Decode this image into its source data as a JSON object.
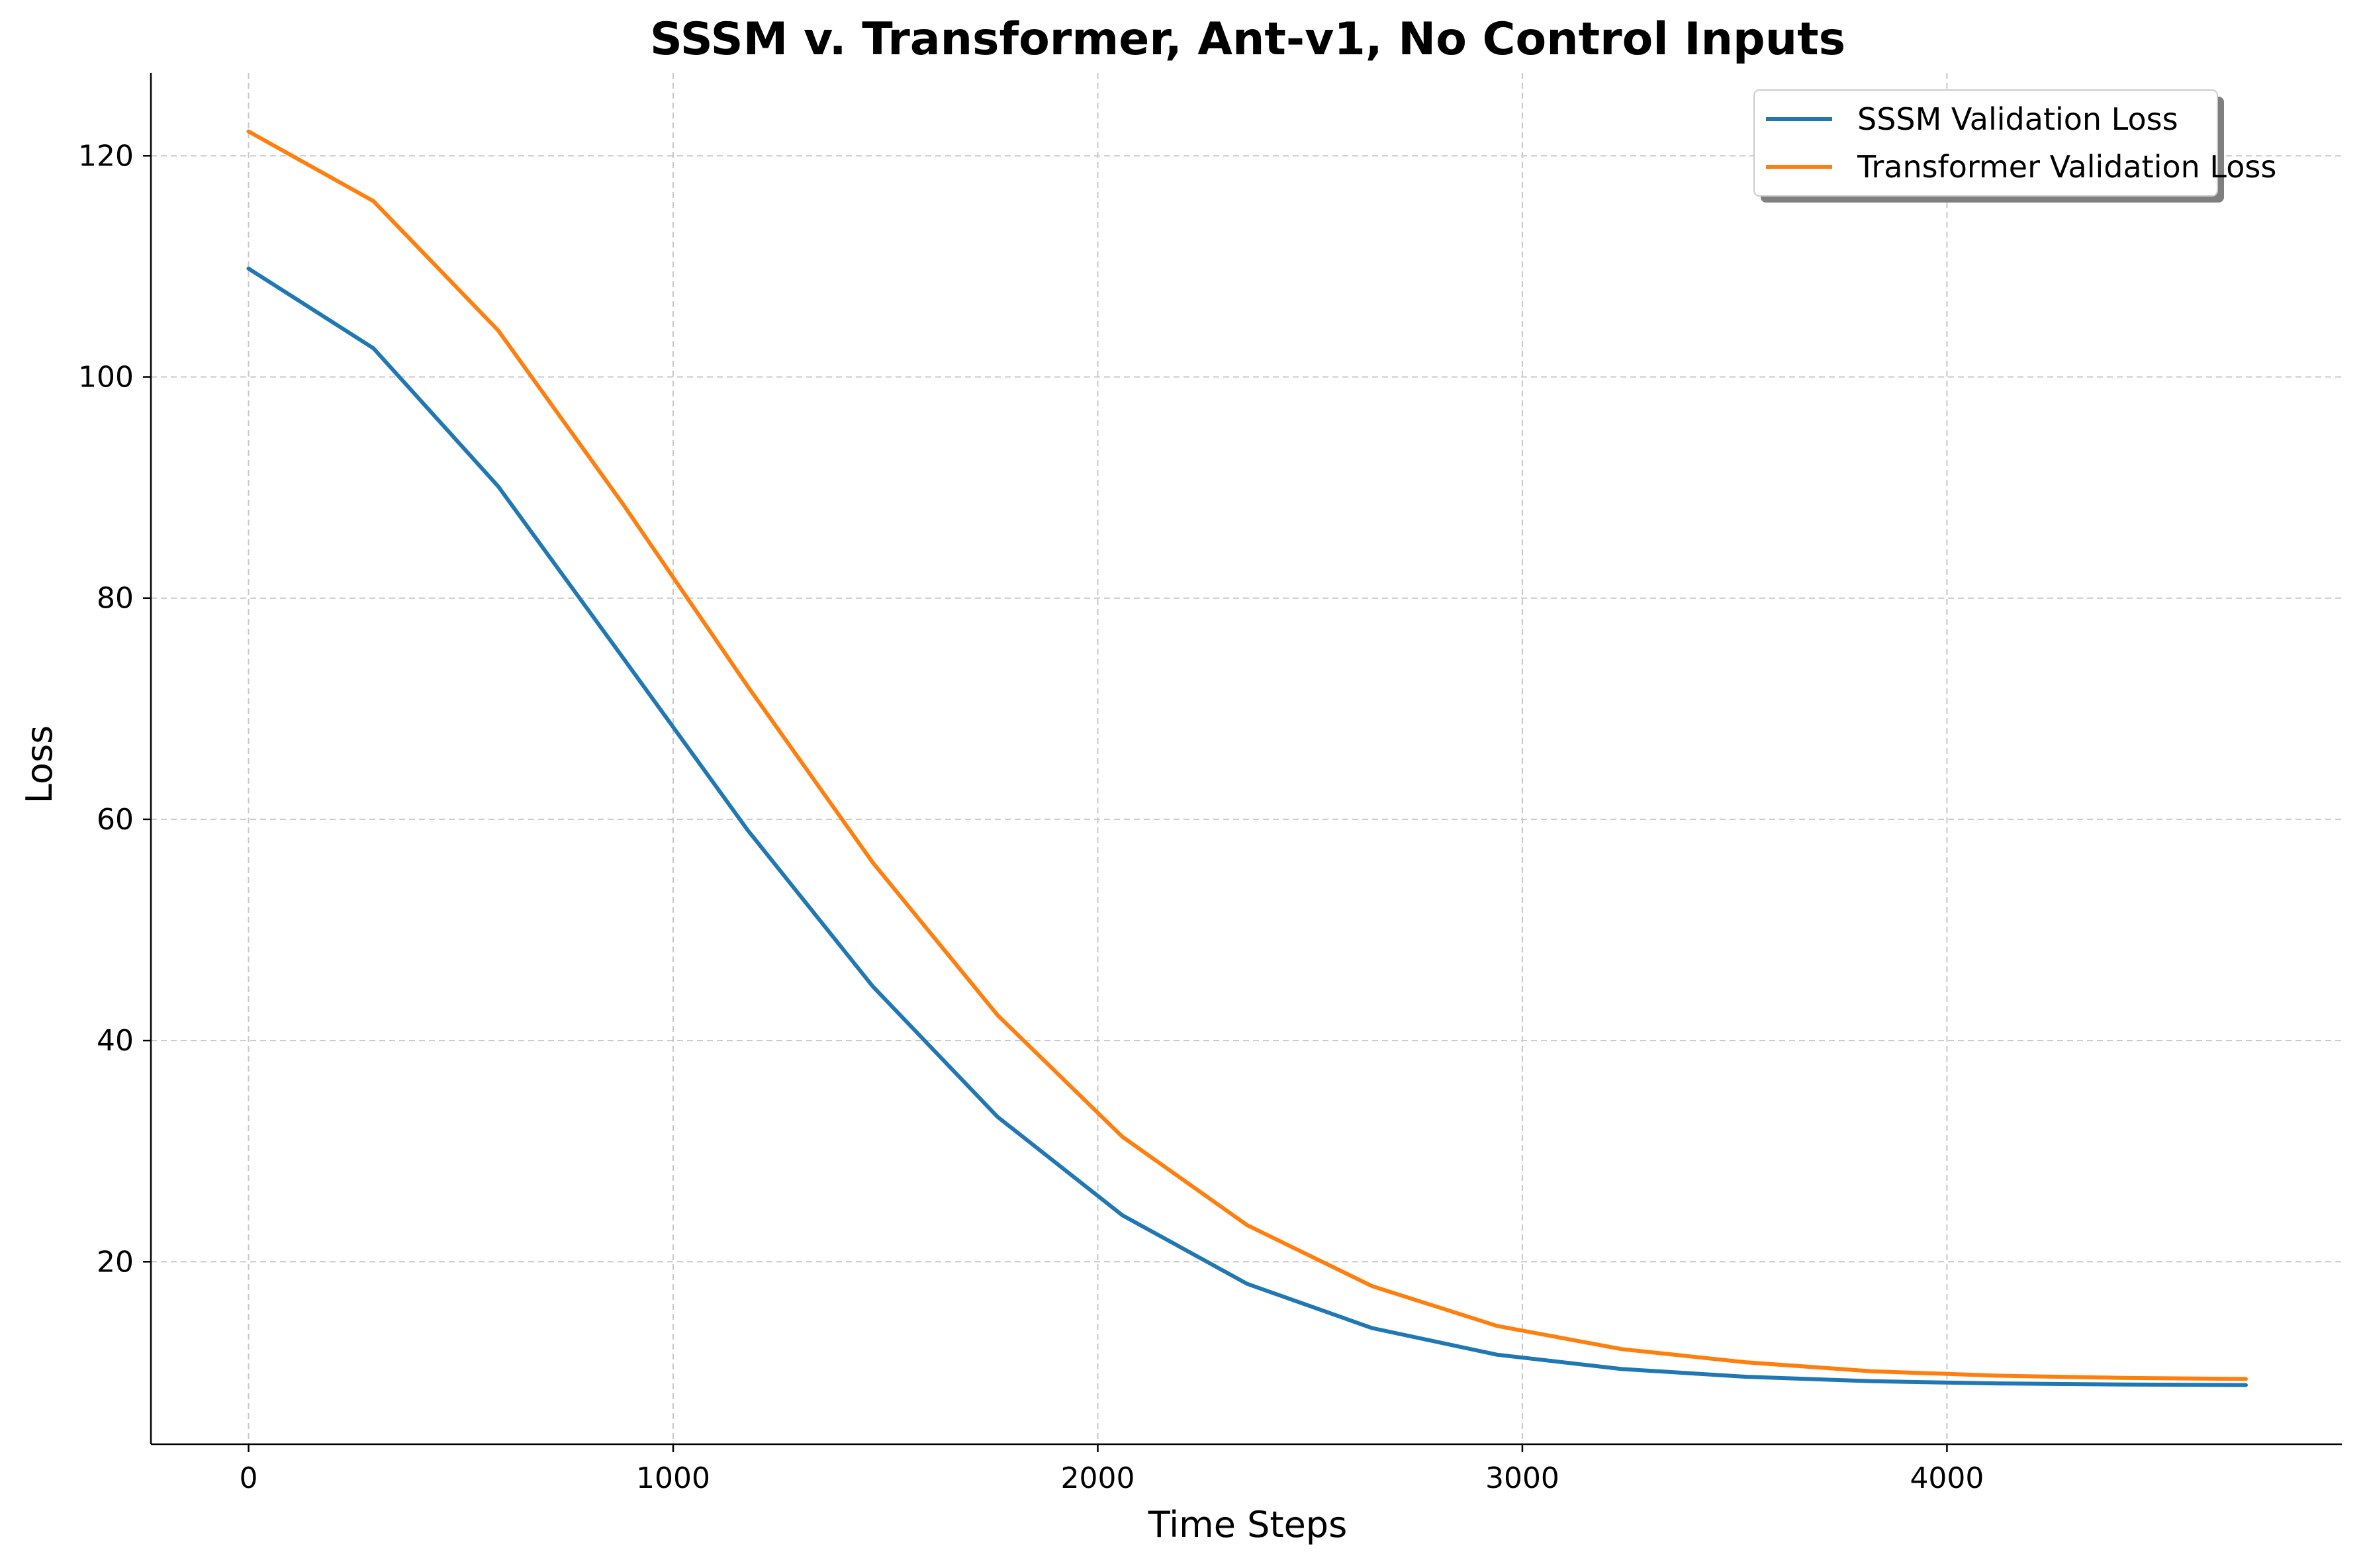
{
  "chart_data": {
    "type": "line",
    "title": "SSSM v. Transformer, Ant-v1, No Control Inputs",
    "xlabel": "Time Steps",
    "ylabel": "Loss",
    "xlim": [
      -230,
      4930
    ],
    "ylim": [
      3.5,
      127.5
    ],
    "xticks": [
      0,
      1000,
      2000,
      3000,
      4000
    ],
    "yticks": [
      20,
      40,
      60,
      80,
      100,
      120
    ],
    "grid": true,
    "legend_position": "top-right",
    "x": [
      0,
      294,
      588,
      882,
      1176,
      1470,
      1764,
      2058,
      2352,
      2646,
      2940,
      3234,
      3528,
      3822,
      4116,
      4410,
      4704
    ],
    "series": [
      {
        "name": "SSSM Validation Loss",
        "color": "#1f77b4",
        "values": [
          109.8,
          102.6,
          90.1,
          74.6,
          59.0,
          44.9,
          33.1,
          24.2,
          18.0,
          14.0,
          11.6,
          10.3,
          9.6,
          9.2,
          9.0,
          8.9,
          8.85
        ]
      },
      {
        "name": "Transformer Validation Loss",
        "color": "#ff7f0e",
        "values": [
          122.2,
          115.9,
          104.2,
          88.5,
          72.0,
          56.1,
          42.3,
          31.3,
          23.3,
          17.8,
          14.2,
          12.1,
          10.9,
          10.1,
          9.7,
          9.5,
          9.4
        ]
      }
    ]
  }
}
